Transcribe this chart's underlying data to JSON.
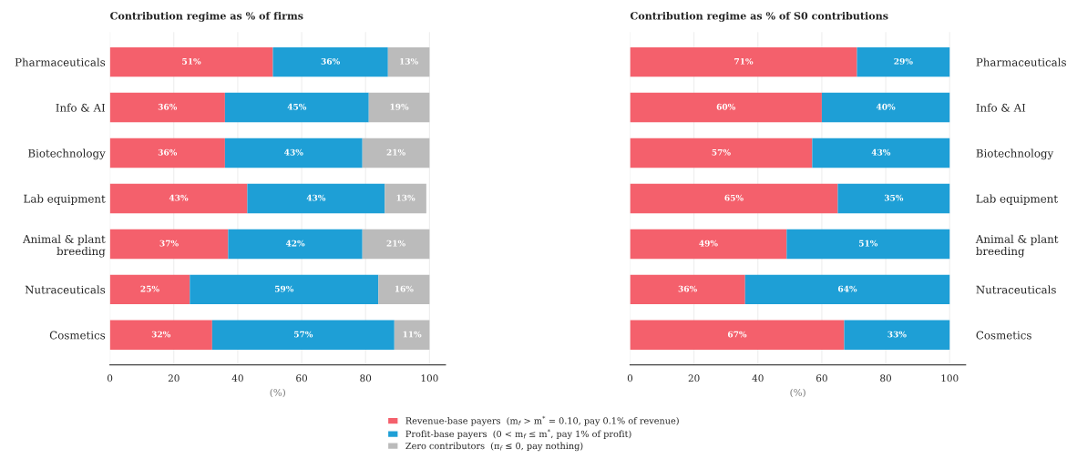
{
  "chart_data": [
    {
      "type": "bar",
      "orientation": "horizontal",
      "stacked": true,
      "title": "Contribution regime as % of firms",
      "xlabel": "(%)",
      "categories": [
        "Pharmaceuticals",
        "Info & AI",
        "Biotechnology",
        "Lab equipment",
        "Animal & plant\nbreeding",
        "Nutraceuticals",
        "Cosmetics"
      ],
      "series": [
        {
          "name": "Revenue-base payers  (m$_{f}$ > m$^{*}$ = 0.10, pay 0.1% of revenue)",
          "color": "#f4606c",
          "values": [
            51,
            36,
            36,
            43,
            37,
            25,
            32
          ],
          "value_labels": [
            "51%",
            "36%",
            "36%",
            "43%",
            "37%",
            "25%",
            "32%"
          ]
        },
        {
          "name": "Profit-base payers  (0 < m$_{f}$ ≤ m$^{*}$, pay 1% of profit)",
          "color": "#1e9fd6",
          "values": [
            36,
            45,
            43,
            43,
            42,
            59,
            57
          ],
          "value_labels": [
            "36%",
            "45%",
            "43%",
            "43%",
            "42%",
            "59%",
            "57%"
          ]
        },
        {
          "name": "Zero contributors  (π$_{f}$ ≤ 0, pay nothing)",
          "color": "#bbbbbb",
          "values": [
            13,
            19,
            21,
            13,
            21,
            16,
            11
          ],
          "value_labels": [
            "13%",
            "19%",
            "21%",
            "13%",
            "21%",
            "16%",
            "11%"
          ]
        }
      ],
      "xlim": [
        0,
        105
      ],
      "xticks": [
        0,
        20,
        40,
        60,
        80,
        100
      ],
      "grid": "x",
      "legend": "bottom"
    },
    {
      "type": "bar",
      "orientation": "horizontal",
      "stacked": true,
      "title": "Contribution regime as % of S0 contributions",
      "xlabel": "(%)",
      "categories": [
        "Pharmaceuticals",
        "Info & AI",
        "Biotechnology",
        "Lab equipment",
        "Animal & plant\nbreeding",
        "Nutraceuticals",
        "Cosmetics"
      ],
      "series": [
        {
          "color": "#f4606c",
          "values": [
            71,
            60,
            57,
            65,
            49,
            36,
            67
          ],
          "value_labels": [
            "71%",
            "60%",
            "57%",
            "65%",
            "49%",
            "36%",
            "67%"
          ]
        },
        {
          "color": "#1e9fd6",
          "values": [
            29,
            40,
            43,
            35,
            51,
            64,
            33
          ],
          "value_labels": [
            "29%",
            "40%",
            "43%",
            "35%",
            "51%",
            "64%",
            "33%"
          ]
        }
      ],
      "xlim": [
        0,
        105
      ],
      "xticks": [
        0,
        20,
        40,
        60,
        80,
        100
      ],
      "grid": "x"
    }
  ]
}
